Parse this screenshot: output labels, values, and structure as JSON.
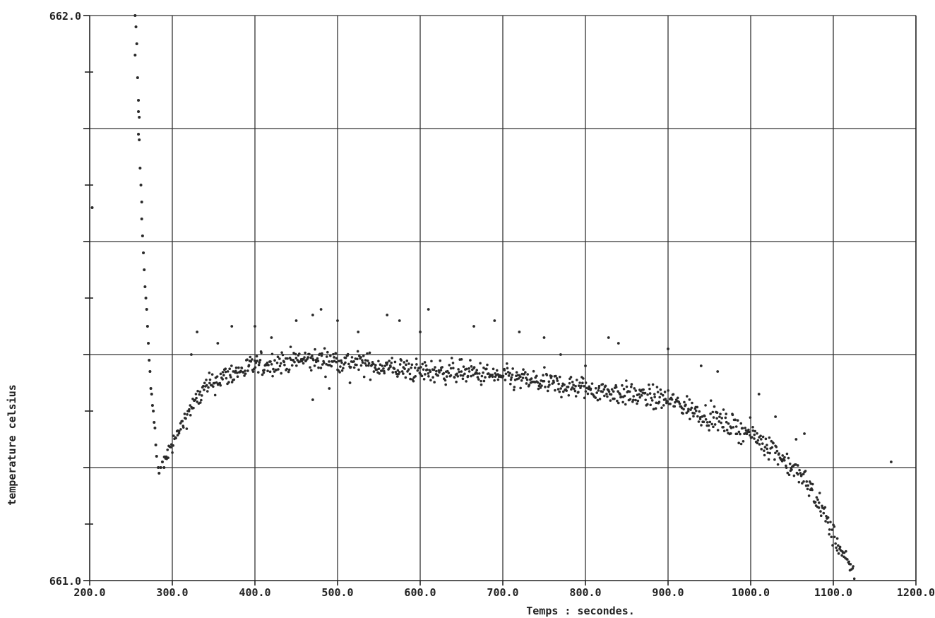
{
  "chart_data": {
    "type": "scatter",
    "title": "",
    "xlabel": "Temps : secondes.",
    "ylabel": "temperature celsius",
    "xlim": [
      200.0,
      1200.0
    ],
    "ylim": [
      661.0,
      662.0
    ],
    "x_tick_labels": [
      "200.0",
      "300.0",
      "400.0",
      "500.0",
      "600.0",
      "700.0",
      "800.0",
      "900.0",
      "1000.0",
      "1100.0",
      "1200.0"
    ],
    "x_ticks": [
      200,
      300,
      400,
      500,
      600,
      700,
      800,
      900,
      1000,
      1100,
      1200
    ],
    "y_tick_labels": [
      {
        "value": 662.0,
        "label": "662.0"
      },
      {
        "value": 661.0,
        "label": "661.0"
      }
    ],
    "y_gridlines": [
      661.2,
      661.4,
      661.6,
      661.8,
      662.0
    ],
    "y_minor_ticks": [
      661.1,
      661.3,
      661.5,
      661.7,
      661.9
    ],
    "grid": true,
    "legend": "none",
    "series": [
      {
        "points": [
          [
            203,
            661.66
          ],
          [
            255,
            662.0
          ],
          [
            256,
            661.98
          ],
          [
            257,
            661.95
          ],
          [
            255,
            661.93
          ],
          [
            258,
            661.89
          ],
          [
            259,
            661.85
          ],
          [
            259,
            661.83
          ],
          [
            260,
            661.82
          ],
          [
            259,
            661.79
          ],
          [
            260,
            661.78
          ],
          [
            261,
            661.73
          ],
          [
            262,
            661.7
          ],
          [
            263,
            661.67
          ],
          [
            263,
            661.64
          ],
          [
            264,
            661.61
          ],
          [
            265,
            661.58
          ],
          [
            266,
            661.55
          ],
          [
            267,
            661.52
          ],
          [
            268,
            661.5
          ],
          [
            269,
            661.48
          ],
          [
            270,
            661.45
          ],
          [
            271,
            661.42
          ],
          [
            272,
            661.39
          ],
          [
            273,
            661.37
          ],
          [
            274,
            661.34
          ],
          [
            275,
            661.33
          ],
          [
            276,
            661.31
          ],
          [
            277,
            661.3
          ],
          [
            278,
            661.28
          ],
          [
            279,
            661.27
          ],
          [
            280,
            661.24
          ],
          [
            281,
            661.22
          ],
          [
            283,
            661.2
          ],
          [
            284,
            661.19
          ],
          [
            286,
            661.2
          ],
          [
            288,
            661.21
          ],
          [
            290,
            661.2
          ]
        ],
        "band": [
          [
            290,
            661.21
          ],
          [
            300,
            661.24
          ],
          [
            310,
            661.27
          ],
          [
            320,
            661.3
          ],
          [
            330,
            661.32
          ],
          [
            340,
            661.34
          ],
          [
            350,
            661.35
          ],
          [
            360,
            661.36
          ],
          [
            380,
            661.37
          ],
          [
            400,
            661.38
          ],
          [
            450,
            661.39
          ],
          [
            500,
            661.39
          ],
          [
            550,
            661.38
          ],
          [
            600,
            661.37
          ],
          [
            650,
            661.37
          ],
          [
            700,
            661.36
          ],
          [
            750,
            661.35
          ],
          [
            800,
            661.34
          ],
          [
            850,
            661.33
          ],
          [
            900,
            661.32
          ],
          [
            950,
            661.29
          ],
          [
            1000,
            661.26
          ],
          [
            1030,
            661.23
          ],
          [
            1050,
            661.2
          ],
          [
            1070,
            661.17
          ],
          [
            1085,
            661.13
          ],
          [
            1100,
            661.08
          ],
          [
            1110,
            661.05
          ],
          [
            1120,
            661.02
          ],
          [
            1128,
            661.0
          ]
        ],
        "outliers": [
          [
            323,
            661.4
          ],
          [
            330,
            661.44
          ],
          [
            355,
            661.42
          ],
          [
            372,
            661.45
          ],
          [
            400,
            661.45
          ],
          [
            420,
            661.43
          ],
          [
            450,
            661.46
          ],
          [
            470,
            661.47
          ],
          [
            480,
            661.48
          ],
          [
            500,
            661.46
          ],
          [
            515,
            661.35
          ],
          [
            525,
            661.44
          ],
          [
            560,
            661.47
          ],
          [
            575,
            661.46
          ],
          [
            600,
            661.44
          ],
          [
            610,
            661.48
          ],
          [
            665,
            661.45
          ],
          [
            690,
            661.46
          ],
          [
            720,
            661.44
          ],
          [
            750,
            661.43
          ],
          [
            770,
            661.4
          ],
          [
            800,
            661.38
          ],
          [
            828,
            661.43
          ],
          [
            840,
            661.42
          ],
          [
            900,
            661.41
          ],
          [
            940,
            661.38
          ],
          [
            960,
            661.37
          ],
          [
            1010,
            661.33
          ],
          [
            1030,
            661.29
          ],
          [
            1055,
            661.25
          ],
          [
            1065,
            661.26
          ],
          [
            1170,
            661.21
          ],
          [
            470,
            661.32
          ],
          [
            490,
            661.34
          ]
        ]
      }
    ]
  }
}
